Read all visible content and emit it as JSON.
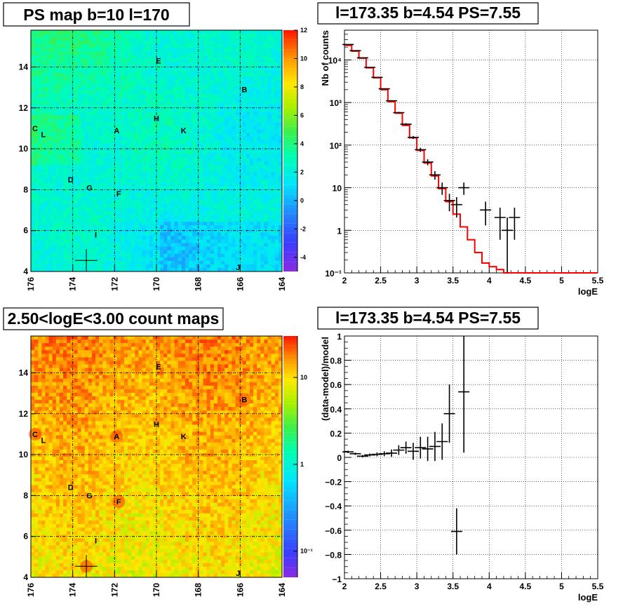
{
  "colors": {
    "model_line": "#ff0000",
    "data_points": "#000000",
    "grid": "#000000",
    "title_box_border": "#000000"
  },
  "chart_data": [
    {
      "panel": "top-left",
      "type": "heatmap",
      "title": "PS map b=10 l=170",
      "x_ticks": [
        "176",
        "174",
        "172",
        "170",
        "168",
        "166",
        "164"
      ],
      "x_range": [
        176,
        164
      ],
      "y_ticks": [
        "4",
        "6",
        "8",
        "10",
        "12",
        "14"
      ],
      "y_range": [
        4,
        15.8
      ],
      "grid": true,
      "colorbar": {
        "scale": "linear",
        "ticks": [
          "12",
          "10",
          "8",
          "6",
          "4",
          "2",
          "0",
          "-2",
          "-4"
        ],
        "range": [
          -5,
          12
        ]
      },
      "sources": [
        {
          "label": "E",
          "l": 169.9,
          "b": 14.3
        },
        {
          "label": "B",
          "l": 165.8,
          "b": 12.9
        },
        {
          "label": "C",
          "l": 175.8,
          "b": 11.0
        },
        {
          "label": "L",
          "l": 175.4,
          "b": 10.7
        },
        {
          "label": "H",
          "l": 170.0,
          "b": 11.5
        },
        {
          "label": "A",
          "l": 171.9,
          "b": 10.9
        },
        {
          "label": "K",
          "l": 168.7,
          "b": 10.9
        },
        {
          "label": "D",
          "l": 174.1,
          "b": 8.5
        },
        {
          "label": "G",
          "l": 173.2,
          "b": 8.1
        },
        {
          "label": "F",
          "l": 171.8,
          "b": 7.8
        },
        {
          "label": "I",
          "l": 172.9,
          "b": 5.8
        },
        {
          "label": "J",
          "l": 166.1,
          "b": 4.2
        }
      ],
      "marker": {
        "l": 173.35,
        "b": 4.54
      }
    },
    {
      "panel": "top-right",
      "type": "line",
      "title": "l=173.35 b=4.54 PS=7.55",
      "xlabel": "logE",
      "ylabel": "Nb of counts",
      "xlim": [
        2,
        5.5
      ],
      "y_scale": "log",
      "ylim": [
        0.1,
        50000
      ],
      "x_ticks": [
        "2",
        "2.5",
        "3",
        "3.5",
        "4",
        "4.5",
        "5",
        "5.5"
      ],
      "y_ticks": [
        "10⁻¹",
        "1",
        "10",
        "10²",
        "10³",
        "10⁴"
      ],
      "grid": true,
      "series": [
        {
          "style": "histogram-step",
          "color": "#ff0000",
          "x": [
            2.0,
            2.1,
            2.2,
            2.3,
            2.4,
            2.5,
            2.6,
            2.7,
            2.8,
            2.9,
            3.0,
            3.1,
            3.2,
            3.3,
            3.4,
            3.5,
            3.6,
            3.7,
            3.8,
            3.9,
            4.0,
            4.1,
            4.2,
            4.3,
            4.4,
            4.5,
            4.6,
            4.7,
            4.8,
            4.9,
            5.0,
            5.1,
            5.2,
            5.3,
            5.4
          ],
          "values": [
            22000,
            16000,
            11000,
            6500,
            3800,
            2000,
            1050,
            560,
            290,
            148,
            75,
            38,
            19,
            9.5,
            4.7,
            2.4,
            1.2,
            0.6,
            0.3,
            0.17,
            0.14,
            0.12,
            0.1,
            0.1,
            0.1,
            0.1,
            0.1,
            0.1,
            0.1,
            0.1,
            0.1,
            0.1,
            0.1,
            0.1,
            0.1
          ]
        },
        {
          "style": "points-with-errors",
          "color": "#000000",
          "x": [
            2.05,
            2.15,
            2.25,
            2.35,
            2.45,
            2.55,
            2.65,
            2.75,
            2.85,
            2.95,
            3.05,
            3.15,
            3.25,
            3.35,
            3.45,
            3.55,
            3.65,
            3.95,
            4.15,
            4.25,
            4.35
          ],
          "values": [
            23000,
            16500,
            11200,
            6700,
            3900,
            2100,
            1100,
            580,
            310,
            152,
            78,
            40,
            20,
            10,
            5,
            4,
            10,
            3,
            2,
            1,
            2
          ],
          "err_low": [
            150,
            128,
            106,
            82,
            62,
            46,
            33,
            24,
            17.6,
            12.3,
            8.8,
            6.3,
            4.5,
            3.2,
            2.2,
            2,
            3.2,
            1.7,
            1.4,
            0.9,
            1.4
          ],
          "err_high": [
            150,
            128,
            106,
            82,
            62,
            46,
            33,
            24,
            17.6,
            12.3,
            8.8,
            6.3,
            4.5,
            3.2,
            2.2,
            2,
            3.2,
            1.7,
            1.4,
            1,
            1.4
          ]
        }
      ]
    },
    {
      "panel": "bottom-left",
      "type": "heatmap",
      "title": "2.50<logE<3.00 count maps",
      "x_ticks": [
        "176",
        "174",
        "172",
        "170",
        "168",
        "166",
        "164"
      ],
      "x_range": [
        176,
        164
      ],
      "y_ticks": [
        "4",
        "6",
        "8",
        "10",
        "12",
        "14"
      ],
      "y_range": [
        4,
        15.8
      ],
      "grid": true,
      "colorbar": {
        "scale": "log",
        "ticks": [
          "10",
          "1",
          "10⁻¹"
        ],
        "range": [
          0.05,
          30
        ]
      },
      "sources": [
        {
          "label": "E",
          "l": 169.9,
          "b": 14.3
        },
        {
          "label": "B",
          "l": 165.8,
          "b": 12.7
        },
        {
          "label": "C",
          "l": 175.8,
          "b": 11.0
        },
        {
          "label": "L",
          "l": 175.4,
          "b": 10.7
        },
        {
          "label": "H",
          "l": 170.0,
          "b": 11.5
        },
        {
          "label": "A",
          "l": 171.9,
          "b": 10.9
        },
        {
          "label": "K",
          "l": 168.7,
          "b": 10.9
        },
        {
          "label": "D",
          "l": 174.1,
          "b": 8.4
        },
        {
          "label": "G",
          "l": 173.2,
          "b": 8.0
        },
        {
          "label": "F",
          "l": 171.8,
          "b": 7.7
        },
        {
          "label": "I",
          "l": 172.9,
          "b": 5.8
        },
        {
          "label": "J",
          "l": 166.1,
          "b": 4.2
        }
      ],
      "marker": {
        "l": 173.35,
        "b": 4.54
      }
    },
    {
      "panel": "bottom-right",
      "type": "scatter",
      "title": "l=173.35 b=4.54 PS=7.55",
      "xlabel": "logE",
      "ylabel": "(data-model)/model",
      "xlim": [
        2,
        5.5
      ],
      "ylim": [
        -1,
        1
      ],
      "x_ticks": [
        "2",
        "2.5",
        "3",
        "3.5",
        "4",
        "4.5",
        "5",
        "5.5"
      ],
      "y_ticks": [
        "1",
        "0.8",
        "0.6",
        "0.4",
        "0.2",
        "0",
        "−0.2",
        "−0.4",
        "−0.6",
        "−0.8",
        "−1"
      ],
      "grid": true,
      "series": [
        {
          "style": "points-with-errors",
          "color": "#000000",
          "x": [
            2.05,
            2.15,
            2.25,
            2.35,
            2.45,
            2.55,
            2.65,
            2.75,
            2.85,
            2.95,
            3.05,
            3.15,
            3.25,
            3.35,
            3.45,
            3.55,
            3.65
          ],
          "values": [
            0.045,
            0.03,
            0.01,
            0.02,
            0.025,
            0.03,
            0.035,
            0.06,
            0.08,
            0.05,
            0.08,
            0.07,
            0.09,
            0.13,
            0.36,
            -0.61,
            0.54
          ],
          "err_low": [
            0.01,
            0.01,
            0.01,
            0.012,
            0.016,
            0.02,
            0.03,
            0.04,
            0.05,
            0.07,
            0.09,
            0.1,
            0.12,
            0.15,
            0.24,
            0.19,
            0.5
          ],
          "err_high": [
            0.01,
            0.01,
            0.01,
            0.012,
            0.016,
            0.02,
            0.03,
            0.04,
            0.05,
            0.07,
            0.09,
            0.1,
            0.12,
            0.15,
            0.24,
            0.19,
            0.5
          ]
        }
      ]
    }
  ]
}
